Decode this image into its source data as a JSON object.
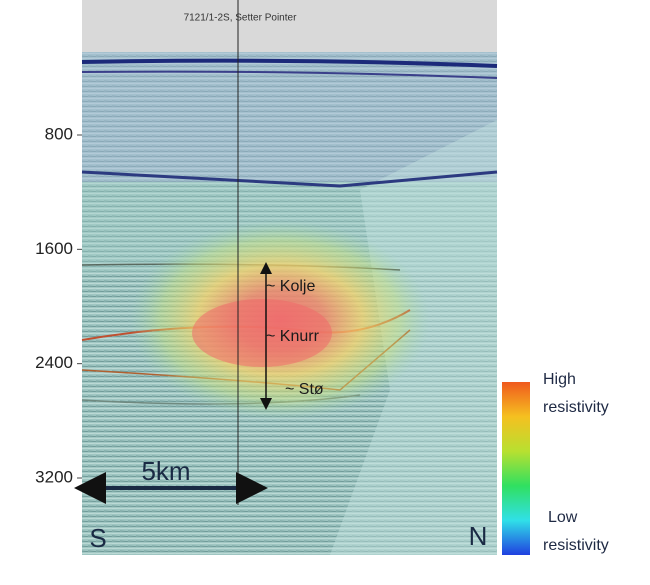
{
  "well_label": "7121/1-2S, Setter Pointer",
  "depth_axis": {
    "ticks": [
      800,
      1600,
      2400,
      3200
    ]
  },
  "horizons": [
    "~ Kolje",
    "~ Knurr",
    "~ Stø"
  ],
  "scale_bar": "5km",
  "directions": {
    "left": "S",
    "right": "N"
  },
  "colorbar": {
    "high": [
      "High",
      "resistivity"
    ],
    "low": [
      "Low",
      "resistivity"
    ]
  }
}
